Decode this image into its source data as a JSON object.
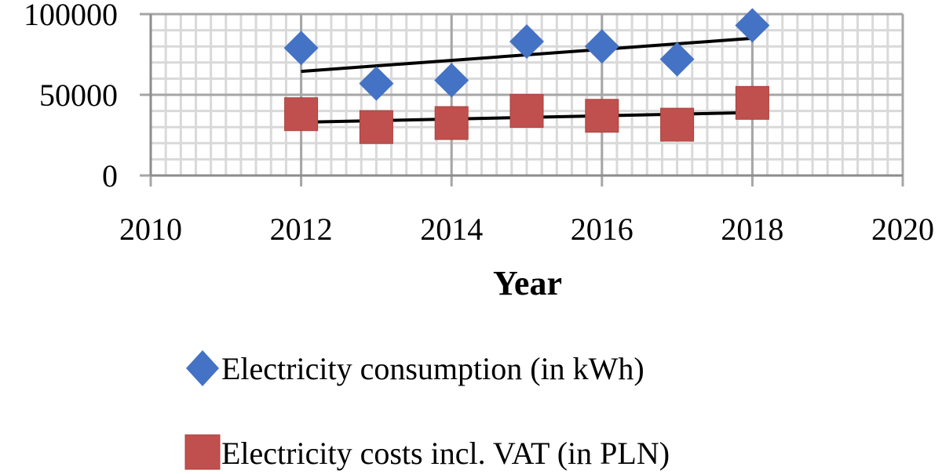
{
  "chart_data": {
    "type": "scatter",
    "title": "",
    "xlabel": "Year",
    "ylabel": "",
    "xlim": [
      2010,
      2020
    ],
    "ylim": [
      0,
      100000
    ],
    "x_ticks": [
      2010,
      2012,
      2014,
      2016,
      2018,
      2020
    ],
    "y_ticks": [
      0,
      50000,
      100000
    ],
    "grid": true,
    "legend_position": "bottom",
    "series": [
      {
        "name": "Electricity consumption (in kWh)",
        "marker": "diamond",
        "color": "#4472C4",
        "x": [
          2012,
          2013,
          2014,
          2015,
          2016,
          2017,
          2018
        ],
        "y": [
          79000,
          57000,
          59000,
          83000,
          80000,
          72000,
          93000
        ],
        "trendline": {
          "x": [
            2012,
            2018
          ],
          "y": [
            64500,
            85000
          ]
        }
      },
      {
        "name": "Electricity costs incl. VAT (in PLN)",
        "marker": "square",
        "color": "#C0504D",
        "x": [
          2012,
          2013,
          2014,
          2015,
          2016,
          2017,
          2018
        ],
        "y": [
          38000,
          30000,
          32500,
          40000,
          37000,
          31500,
          45000
        ],
        "trendline": {
          "x": [
            2012,
            2018
          ],
          "y": [
            33000,
            39000
          ]
        }
      }
    ]
  }
}
